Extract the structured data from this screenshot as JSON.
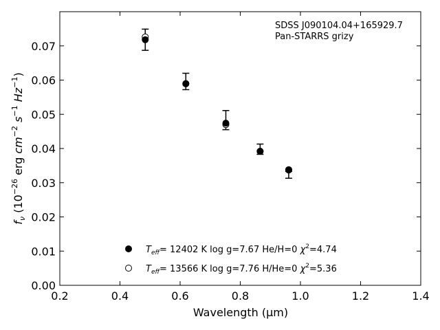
{
  "chart_data": {
    "type": "scatter",
    "xlabel": "Wavelength (μm)",
    "xlim": [
      0.2,
      1.4
    ],
    "ylim": [
      0.0,
      0.08
    ],
    "xticks": [
      "0.2",
      "0.4",
      "0.6",
      "0.8",
      "1.0",
      "1.2",
      "1.4"
    ],
    "yticks": [
      "0.00",
      "0.01",
      "0.02",
      "0.03",
      "0.04",
      "0.05",
      "0.06",
      "0.07"
    ],
    "annotation": [
      "SDSS J090104.04+165929.7",
      "Pan-STARRS grizy"
    ],
    "observed": {
      "x": [
        0.484,
        0.619,
        0.752,
        0.866,
        0.961
      ],
      "y": [
        0.0718,
        0.0596,
        0.0483,
        0.0398,
        0.0323
      ],
      "yerr": [
        0.0031,
        0.0024,
        0.0028,
        0.0015,
        0.001
      ]
    },
    "series": [
      {
        "name_parts": [
          "= 12402 K  log g=7.67  He/H=0  ",
          "=4.74"
        ],
        "marker": "filled",
        "x": [
          0.484,
          0.619,
          0.752,
          0.866,
          0.961
        ],
        "y": [
          0.0718,
          0.059,
          0.0474,
          0.0392,
          0.0337
        ]
      },
      {
        "name_parts": [
          "= 13566 K  log g=7.76  H/He=0  ",
          "=5.36"
        ],
        "marker": "open",
        "x": [
          0.484,
          0.619,
          0.752,
          0.866,
          0.961
        ],
        "y": [
          0.0726,
          0.0589,
          0.047,
          0.0392,
          0.0338
        ]
      }
    ]
  }
}
